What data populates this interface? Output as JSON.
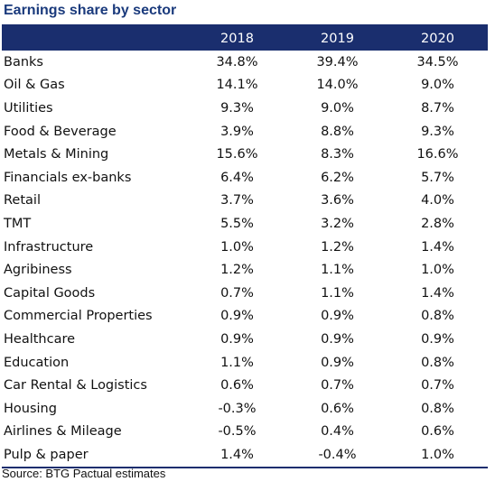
{
  "chart_data": {
    "type": "table",
    "title": "Earnings share by sector",
    "columns": [
      "",
      "2018",
      "2019",
      "2020"
    ],
    "rows": [
      {
        "label": "Banks",
        "values": [
          "34.8%",
          "39.4%",
          "34.5%"
        ]
      },
      {
        "label": "Oil & Gas",
        "values": [
          "14.1%",
          "14.0%",
          "9.0%"
        ]
      },
      {
        "label": "Utilities",
        "values": [
          "9.3%",
          "9.0%",
          "8.7%"
        ]
      },
      {
        "label": "Food & Beverage",
        "values": [
          "3.9%",
          "8.8%",
          "9.3%"
        ]
      },
      {
        "label": "Metals & Mining",
        "values": [
          "15.6%",
          "8.3%",
          "16.6%"
        ]
      },
      {
        "label": "Financials ex-banks",
        "values": [
          "6.4%",
          "6.2%",
          "5.7%"
        ]
      },
      {
        "label": "Retail",
        "values": [
          "3.7%",
          "3.6%",
          "4.0%"
        ]
      },
      {
        "label": "TMT",
        "values": [
          "5.5%",
          "3.2%",
          "2.8%"
        ]
      },
      {
        "label": "Infrastructure",
        "values": [
          "1.0%",
          "1.2%",
          "1.4%"
        ]
      },
      {
        "label": "Agribiness",
        "values": [
          "1.2%",
          "1.1%",
          "1.0%"
        ]
      },
      {
        "label": "Capital Goods",
        "values": [
          "0.7%",
          "1.1%",
          "1.4%"
        ]
      },
      {
        "label": "Commercial Properties",
        "values": [
          "0.9%",
          "0.9%",
          "0.8%"
        ]
      },
      {
        "label": "Healthcare",
        "values": [
          "0.9%",
          "0.9%",
          "0.9%"
        ]
      },
      {
        "label": "Education",
        "values": [
          "1.1%",
          "0.9%",
          "0.8%"
        ]
      },
      {
        "label": "Car Rental & Logistics",
        "values": [
          "0.6%",
          "0.7%",
          "0.7%"
        ]
      },
      {
        "label": "Housing",
        "values": [
          "-0.3%",
          "0.6%",
          "0.8%"
        ]
      },
      {
        "label": "Airlines & Mileage",
        "values": [
          "-0.5%",
          "0.4%",
          "0.6%"
        ]
      },
      {
        "label": "Pulp & paper",
        "values": [
          "1.4%",
          "-0.4%",
          "1.0%"
        ]
      }
    ],
    "source": "Source: BTG Pactual estimates"
  },
  "colors": {
    "header_background": "#1a2e6e",
    "header_text": "#ffffff",
    "title_text": "#1a3a7c",
    "body_text": "#111111"
  }
}
